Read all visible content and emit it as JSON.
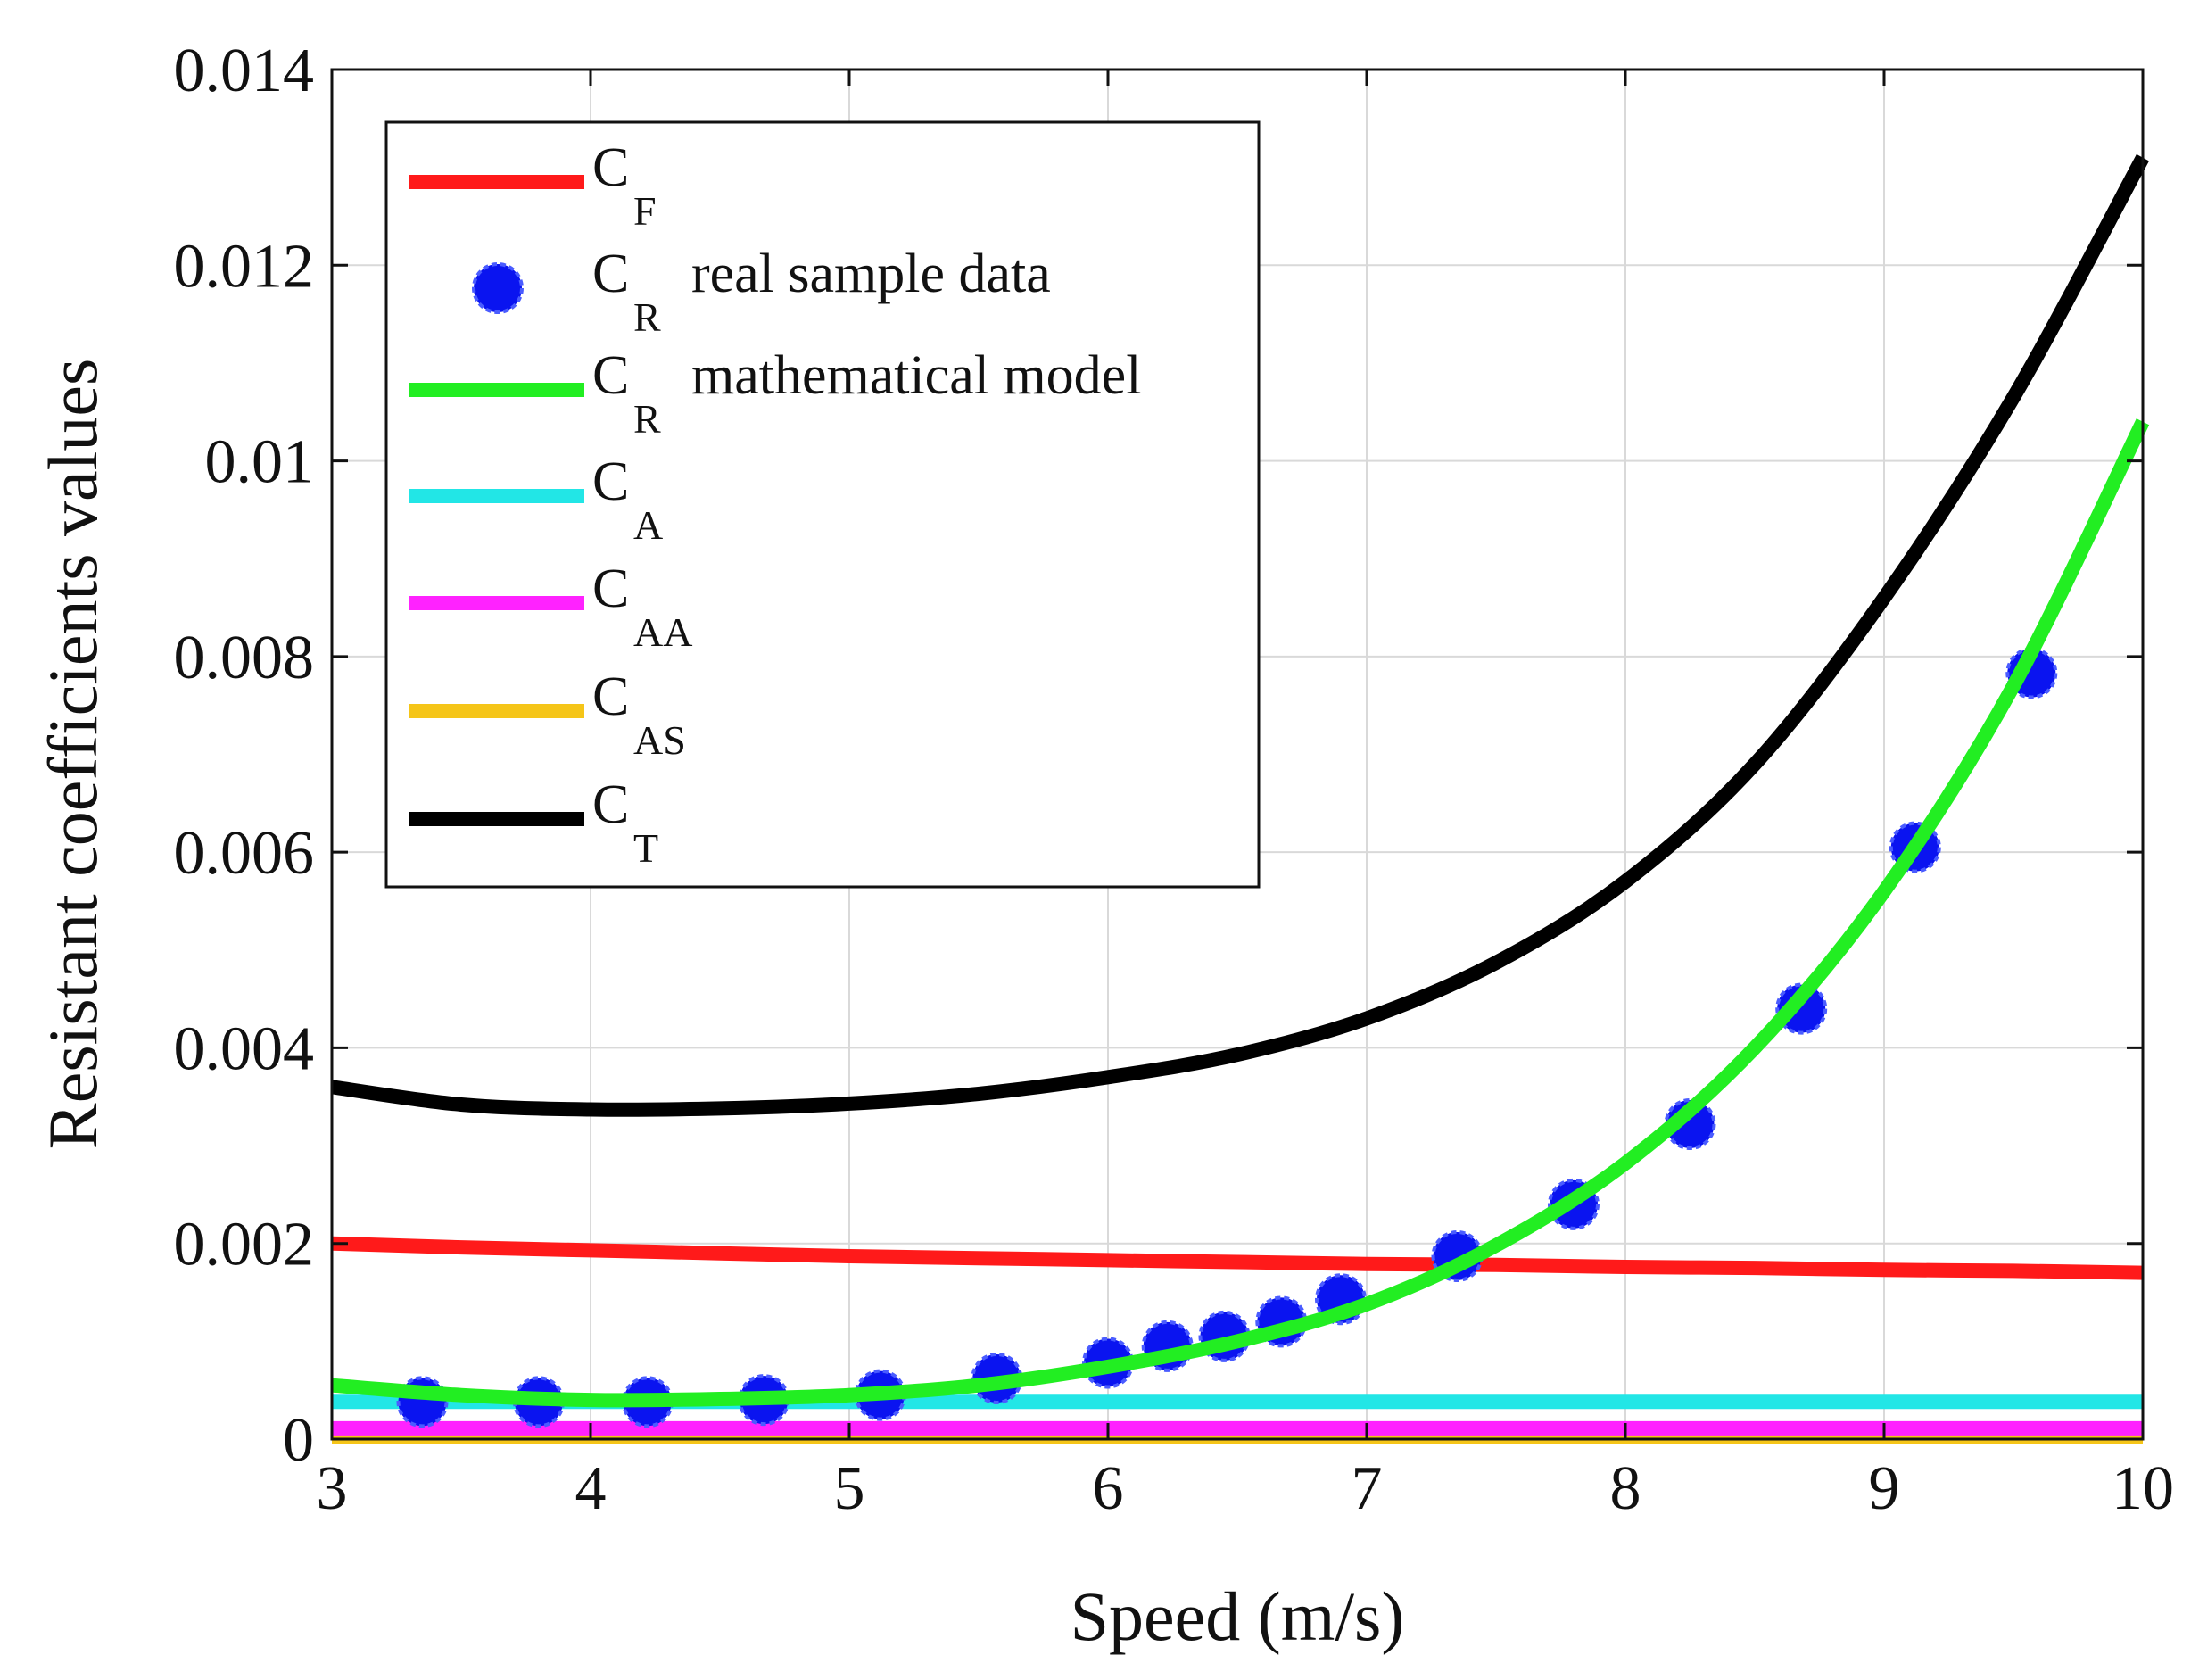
{
  "chart_data": {
    "type": "line",
    "title": "",
    "xlabel": "Speed (m/s)",
    "ylabel": "Resistant coefficients values",
    "xlim": [
      3,
      10
    ],
    "ylim": [
      0,
      0.014
    ],
    "x_ticks": [
      "3",
      "4",
      "5",
      "6",
      "7",
      "8",
      "9",
      "10"
    ],
    "y_ticks": [
      "0",
      "0.002",
      "0.004",
      "0.006",
      "0.008",
      "0.01",
      "0.012",
      "0.014"
    ],
    "grid": true,
    "legend_position": "top-left",
    "series": [
      {
        "name": "C_F",
        "legend_main": "C",
        "legend_sub": "F",
        "legend_suffix": "",
        "style": "line",
        "color": "#ff1a1a",
        "x": [
          3,
          3.5,
          4,
          4.5,
          5,
          5.5,
          6,
          6.5,
          7,
          7.5,
          8,
          8.5,
          9,
          9.5,
          10
        ],
        "values": [
          0.002,
          0.00196,
          0.00193,
          0.0019,
          0.00187,
          0.00185,
          0.00183,
          0.00181,
          0.00179,
          0.00178,
          0.00176,
          0.00175,
          0.00173,
          0.00172,
          0.0017
        ]
      },
      {
        "name": "C_R real sample data",
        "legend_main": "C",
        "legend_sub": "R",
        "legend_suffix": "real sample data",
        "style": "markers",
        "color": "#0a14f0",
        "x": [
          3.35,
          3.8,
          4.22,
          4.67,
          5.12,
          5.57,
          6.0,
          6.23,
          6.45,
          6.67,
          6.9,
          7.35,
          7.8,
          8.25,
          8.68,
          9.12,
          9.57
        ],
        "values": [
          0.00038,
          0.00038,
          0.00038,
          0.0004,
          0.00045,
          0.00062,
          0.00078,
          0.00095,
          0.00105,
          0.0012,
          0.00143,
          0.00187,
          0.0024,
          0.00322,
          0.0044,
          0.00605,
          0.00783
        ]
      },
      {
        "name": "C_R mathematical model",
        "legend_main": "C",
        "legend_sub": "R",
        "legend_suffix": "mathematical model",
        "style": "line",
        "color": "#22ee22",
        "x": [
          3,
          3.5,
          4,
          4.5,
          5,
          5.5,
          6,
          6.5,
          7,
          7.5,
          8,
          8.5,
          9,
          9.5,
          10
        ],
        "values": [
          0.00055,
          0.00045,
          0.0004,
          0.00041,
          0.00045,
          0.00055,
          0.00074,
          0.001,
          0.00138,
          0.00198,
          0.00282,
          0.004,
          0.0056,
          0.0077,
          0.0104
        ]
      },
      {
        "name": "C_A",
        "legend_main": "C",
        "legend_sub": "A",
        "legend_suffix": "",
        "style": "line",
        "color": "#22e6e6",
        "x": [
          3,
          10
        ],
        "values": [
          0.00038,
          0.00038
        ]
      },
      {
        "name": "C_AA",
        "legend_main": "C",
        "legend_sub": "AA",
        "legend_suffix": "",
        "style": "line",
        "color": "#ff22ff",
        "x": [
          3,
          10
        ],
        "values": [
          0.00011,
          0.00011
        ]
      },
      {
        "name": "C_AS",
        "legend_main": "C",
        "legend_sub": "AS",
        "legend_suffix": "",
        "style": "line",
        "color": "#f5c518",
        "x": [
          3,
          10
        ],
        "values": [
          2e-05,
          2e-05
        ]
      },
      {
        "name": "C_T",
        "legend_main": "C",
        "legend_sub": "T",
        "legend_suffix": "",
        "style": "line",
        "color": "#000000",
        "x": [
          3,
          3.5,
          4,
          4.5,
          5,
          5.5,
          6,
          6.5,
          7,
          7.5,
          8,
          8.5,
          9,
          9.5,
          10
        ],
        "values": [
          0.0036,
          0.00342,
          0.00337,
          0.00338,
          0.00343,
          0.00353,
          0.0037,
          0.00393,
          0.0043,
          0.00487,
          0.0057,
          0.0069,
          0.0086,
          0.01065,
          0.0131
        ]
      }
    ]
  }
}
